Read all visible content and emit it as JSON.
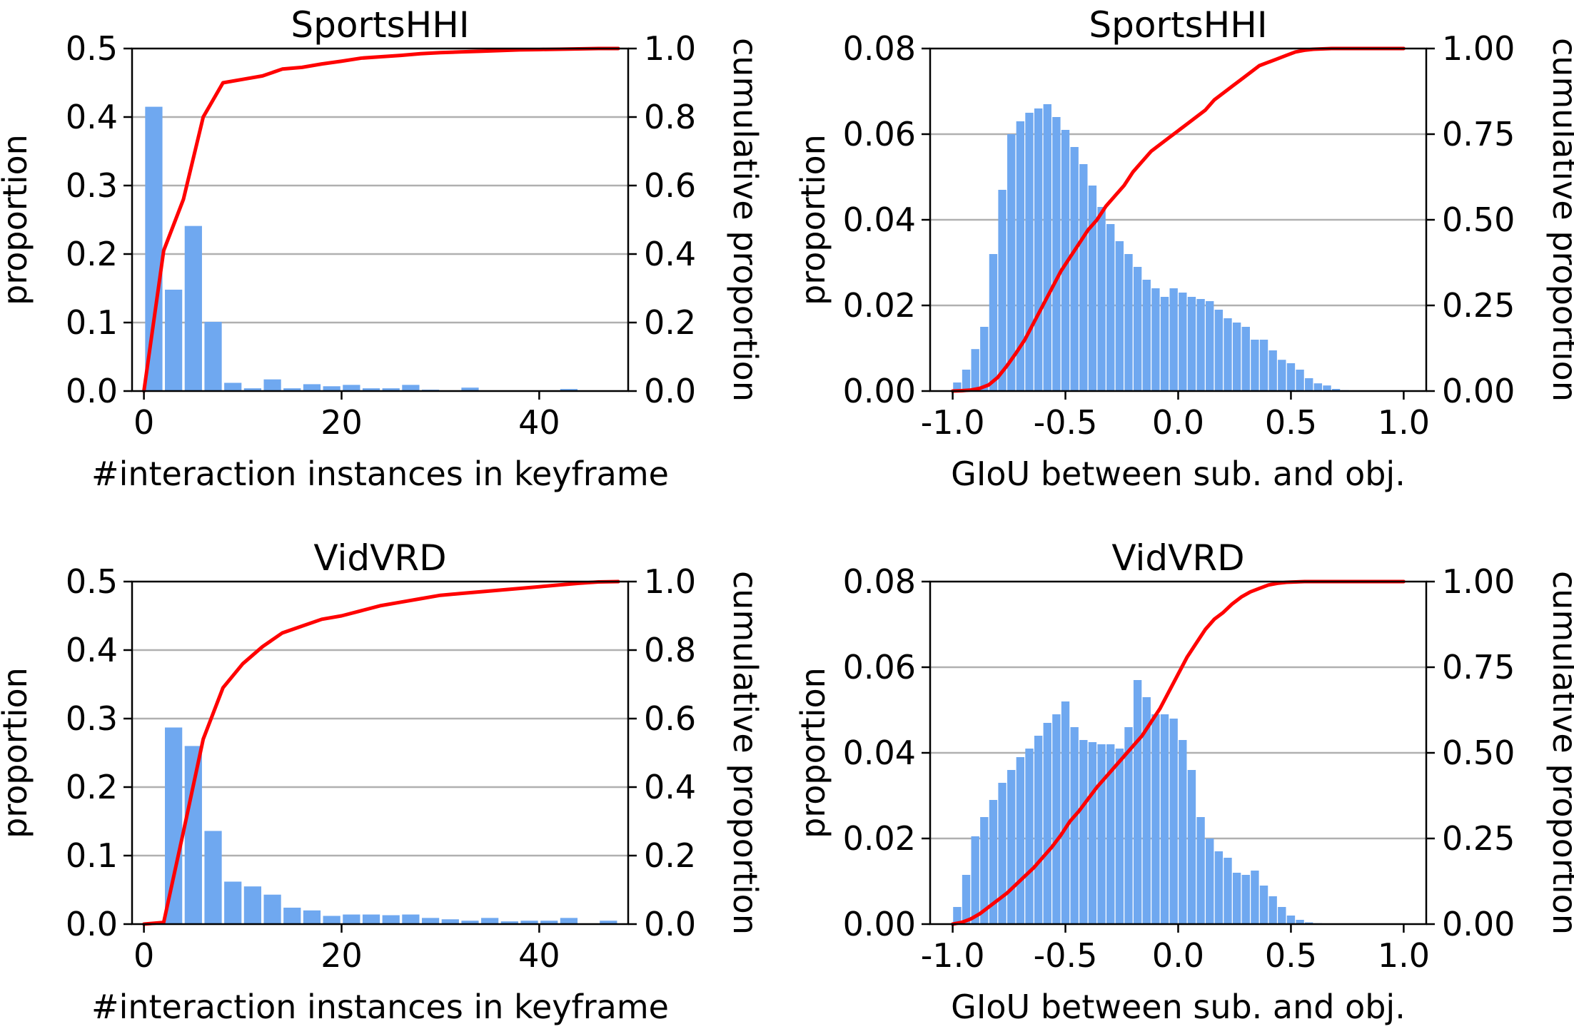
{
  "colors": {
    "bar": "#6fa8f0",
    "cdf": "#ff0000",
    "grid": "#b0b0b0",
    "axis": "#000000"
  },
  "chart_data": [
    {
      "type": "bar",
      "title": "SportsHHI",
      "xlabel": "#interaction instances in keyframe",
      "ylabel": "proportion",
      "y2label": "cumulative proportion",
      "xlim": [
        -1.2,
        49
      ],
      "ylim": [
        0,
        0.5
      ],
      "y2lim": [
        0,
        1.0
      ],
      "xticks": [
        0,
        20,
        40
      ],
      "xtick_labels": [
        "0",
        "20",
        "40"
      ],
      "yticks": [
        0,
        0.1,
        0.2,
        0.3,
        0.4,
        0.5
      ],
      "ytick_labels": [
        "0.0",
        "0.1",
        "0.2",
        "0.3",
        "0.4",
        "0.5"
      ],
      "y2ticks": [
        0,
        0.2,
        0.4,
        0.6,
        0.8,
        1.0
      ],
      "y2tick_labels": [
        "0.0",
        "0.2",
        "0.4",
        "0.6",
        "0.8",
        "1.0"
      ],
      "grid": true,
      "bar_width": 1.75,
      "bars": {
        "x": [
          1,
          3,
          5,
          7,
          9,
          11,
          13,
          15,
          17,
          19,
          21,
          23,
          25,
          27,
          29,
          31,
          33,
          35,
          37,
          39,
          41,
          43,
          45,
          47
        ],
        "values": [
          0.415,
          0.148,
          0.241,
          0.101,
          0.012,
          0.004,
          0.017,
          0.004,
          0.01,
          0.007,
          0.009,
          0.004,
          0.004,
          0.009,
          0.002,
          0.001,
          0.005,
          0.001,
          0.001,
          0.001,
          0.001,
          0.003,
          0.001,
          0.001
        ]
      },
      "cdf": {
        "x": [
          0,
          2,
          4,
          6,
          8,
          10,
          12,
          14,
          16,
          18,
          20,
          22,
          24,
          26,
          28,
          30,
          32,
          34,
          36,
          38,
          40,
          42,
          44,
          46,
          48
        ],
        "values": [
          0.0,
          0.41,
          0.56,
          0.8,
          0.9,
          0.91,
          0.92,
          0.94,
          0.945,
          0.955,
          0.963,
          0.972,
          0.976,
          0.98,
          0.985,
          0.988,
          0.99,
          0.992,
          0.994,
          0.996,
          0.997,
          0.998,
          0.999,
          1.0,
          1.0
        ]
      }
    },
    {
      "type": "bar",
      "title": "SportsHHI",
      "xlabel": "GIoU between sub. and obj.",
      "ylabel": "proportion",
      "y2label": "cumulative proportion",
      "xlim": [
        -1.1,
        1.1
      ],
      "ylim": [
        0,
        0.08
      ],
      "y2lim": [
        0,
        1.0
      ],
      "xticks": [
        -1.0,
        -0.5,
        0.0,
        0.5,
        1.0
      ],
      "xtick_labels": [
        "-1.0",
        "-0.5",
        "0.0",
        "0.5",
        "1.0"
      ],
      "yticks": [
        0,
        0.02,
        0.04,
        0.06,
        0.08
      ],
      "ytick_labels": [
        "0.00",
        "0.02",
        "0.04",
        "0.06",
        "0.08"
      ],
      "y2ticks": [
        0,
        0.25,
        0.5,
        0.75,
        1.0
      ],
      "y2tick_labels": [
        "0.00",
        "0.25",
        "0.50",
        "0.75",
        "1.00"
      ],
      "grid": true,
      "bar_width": 0.036,
      "bars": {
        "x": [
          -0.98,
          -0.94,
          -0.9,
          -0.86,
          -0.82,
          -0.78,
          -0.74,
          -0.7,
          -0.66,
          -0.62,
          -0.58,
          -0.54,
          -0.5,
          -0.46,
          -0.42,
          -0.38,
          -0.34,
          -0.3,
          -0.26,
          -0.22,
          -0.18,
          -0.14,
          -0.1,
          -0.06,
          -0.02,
          0.02,
          0.06,
          0.1,
          0.14,
          0.18,
          0.22,
          0.26,
          0.3,
          0.34,
          0.38,
          0.42,
          0.46,
          0.5,
          0.54,
          0.58,
          0.62,
          0.66,
          0.7,
          0.74,
          0.78,
          0.82,
          0.86,
          0.9,
          0.94,
          0.98
        ],
        "values": [
          0.002,
          0.005,
          0.0098,
          0.015,
          0.032,
          0.047,
          0.06,
          0.063,
          0.065,
          0.066,
          0.067,
          0.064,
          0.061,
          0.057,
          0.053,
          0.048,
          0.043,
          0.039,
          0.035,
          0.032,
          0.029,
          0.026,
          0.024,
          0.022,
          0.024,
          0.023,
          0.022,
          0.0215,
          0.021,
          0.019,
          0.017,
          0.016,
          0.015,
          0.012,
          0.012,
          0.0095,
          0.0073,
          0.0065,
          0.005,
          0.003,
          0.0018,
          0.0013,
          0.0005,
          0.0002,
          0.0001,
          0.0,
          0.0,
          0.0,
          0.0,
          0.0
        ]
      },
      "cdf": {
        "x": [
          -1.0,
          -0.96,
          -0.92,
          -0.88,
          -0.84,
          -0.8,
          -0.76,
          -0.72,
          -0.68,
          -0.64,
          -0.6,
          -0.56,
          -0.52,
          -0.48,
          -0.44,
          -0.4,
          -0.36,
          -0.32,
          -0.28,
          -0.24,
          -0.2,
          -0.16,
          -0.12,
          -0.08,
          -0.04,
          0.0,
          0.04,
          0.08,
          0.12,
          0.16,
          0.2,
          0.24,
          0.28,
          0.32,
          0.36,
          0.4,
          0.44,
          0.48,
          0.52,
          0.56,
          0.6,
          0.64,
          0.68,
          0.72,
          0.76,
          0.8,
          0.84,
          0.88,
          0.92,
          0.96,
          1.0
        ],
        "values": [
          0.0,
          0.001,
          0.003,
          0.008,
          0.018,
          0.04,
          0.073,
          0.11,
          0.15,
          0.2,
          0.25,
          0.3,
          0.35,
          0.39,
          0.43,
          0.47,
          0.5,
          0.54,
          0.57,
          0.6,
          0.64,
          0.67,
          0.7,
          0.72,
          0.74,
          0.76,
          0.78,
          0.8,
          0.82,
          0.85,
          0.87,
          0.89,
          0.91,
          0.93,
          0.95,
          0.96,
          0.97,
          0.98,
          0.99,
          0.995,
          0.998,
          0.999,
          1.0,
          1.0,
          1.0,
          1.0,
          1.0,
          1.0,
          1.0,
          1.0,
          1.0
        ]
      }
    },
    {
      "type": "bar",
      "title": "VidVRD",
      "xlabel": "#interaction instances in keyframe",
      "ylabel": "proportion",
      "y2label": "cumulative proportion",
      "xlim": [
        -1.2,
        49
      ],
      "ylim": [
        0,
        0.5
      ],
      "y2lim": [
        0,
        1.0
      ],
      "xticks": [
        0,
        20,
        40
      ],
      "xtick_labels": [
        "0",
        "20",
        "40"
      ],
      "yticks": [
        0,
        0.1,
        0.2,
        0.3,
        0.4,
        0.5
      ],
      "ytick_labels": [
        "0.0",
        "0.1",
        "0.2",
        "0.3",
        "0.4",
        "0.5"
      ],
      "y2ticks": [
        0,
        0.2,
        0.4,
        0.6,
        0.8,
        1.0
      ],
      "y2tick_labels": [
        "0.0",
        "0.2",
        "0.4",
        "0.6",
        "0.8",
        "1.0"
      ],
      "grid": true,
      "bar_width": 1.75,
      "bars": {
        "x": [
          1,
          3,
          5,
          7,
          9,
          11,
          13,
          15,
          17,
          19,
          21,
          23,
          25,
          27,
          29,
          31,
          33,
          35,
          37,
          39,
          41,
          43,
          45,
          47
        ],
        "values": [
          0.0,
          0.287,
          0.26,
          0.136,
          0.062,
          0.055,
          0.043,
          0.024,
          0.02,
          0.012,
          0.014,
          0.014,
          0.013,
          0.014,
          0.009,
          0.007,
          0.005,
          0.009,
          0.004,
          0.005,
          0.005,
          0.009,
          0.001,
          0.005
        ]
      },
      "cdf": {
        "x": [
          0,
          2,
          4,
          6,
          8,
          10,
          12,
          14,
          16,
          18,
          20,
          22,
          24,
          26,
          28,
          30,
          32,
          34,
          36,
          38,
          40,
          42,
          44,
          46,
          48
        ],
        "values": [
          0.0,
          0.005,
          0.27,
          0.54,
          0.69,
          0.76,
          0.81,
          0.85,
          0.87,
          0.89,
          0.9,
          0.915,
          0.93,
          0.94,
          0.95,
          0.96,
          0.965,
          0.97,
          0.975,
          0.98,
          0.985,
          0.99,
          0.995,
          0.999,
          1.0
        ]
      }
    },
    {
      "type": "bar",
      "title": "VidVRD",
      "xlabel": "GIoU between sub. and obj.",
      "ylabel": "proportion",
      "y2label": "cumulative proportion",
      "xlim": [
        -1.1,
        1.1
      ],
      "ylim": [
        0,
        0.08
      ],
      "y2lim": [
        0,
        1.0
      ],
      "xticks": [
        -1.0,
        -0.5,
        0.0,
        0.5,
        1.0
      ],
      "xtick_labels": [
        "-1.0",
        "-0.5",
        "0.0",
        "0.5",
        "1.0"
      ],
      "yticks": [
        0,
        0.02,
        0.04,
        0.06,
        0.08
      ],
      "ytick_labels": [
        "0.00",
        "0.02",
        "0.04",
        "0.06",
        "0.08"
      ],
      "y2ticks": [
        0,
        0.25,
        0.5,
        0.75,
        1.0
      ],
      "y2tick_labels": [
        "0.00",
        "0.25",
        "0.50",
        "0.75",
        "1.00"
      ],
      "grid": true,
      "bar_width": 0.036,
      "bars": {
        "x": [
          -0.98,
          -0.94,
          -0.9,
          -0.86,
          -0.82,
          -0.78,
          -0.74,
          -0.7,
          -0.66,
          -0.62,
          -0.58,
          -0.54,
          -0.5,
          -0.46,
          -0.42,
          -0.38,
          -0.34,
          -0.3,
          -0.26,
          -0.22,
          -0.18,
          -0.14,
          -0.1,
          -0.06,
          -0.02,
          0.02,
          0.06,
          0.1,
          0.14,
          0.18,
          0.22,
          0.26,
          0.3,
          0.34,
          0.38,
          0.42,
          0.46,
          0.5,
          0.54,
          0.58,
          0.62,
          0.66,
          0.7,
          0.74,
          0.78,
          0.82,
          0.86,
          0.9,
          0.94,
          0.98
        ],
        "values": [
          0.004,
          0.0115,
          0.0205,
          0.025,
          0.029,
          0.033,
          0.036,
          0.039,
          0.041,
          0.044,
          0.047,
          0.049,
          0.052,
          0.046,
          0.043,
          0.0425,
          0.042,
          0.042,
          0.041,
          0.046,
          0.057,
          0.053,
          0.049,
          0.049,
          0.048,
          0.043,
          0.036,
          0.025,
          0.02,
          0.017,
          0.0155,
          0.012,
          0.0115,
          0.0125,
          0.009,
          0.0065,
          0.004,
          0.002,
          0.001,
          0.0004,
          0.0002,
          0.0001,
          0.0,
          0.0,
          0.0,
          0.0,
          0.0,
          0.0,
          0.0,
          0.0
        ]
      },
      "cdf": {
        "x": [
          -1.0,
          -0.96,
          -0.92,
          -0.88,
          -0.84,
          -0.8,
          -0.76,
          -0.72,
          -0.68,
          -0.64,
          -0.6,
          -0.56,
          -0.52,
          -0.48,
          -0.44,
          -0.4,
          -0.36,
          -0.32,
          -0.28,
          -0.24,
          -0.2,
          -0.16,
          -0.12,
          -0.08,
          -0.04,
          0.0,
          0.04,
          0.08,
          0.12,
          0.16,
          0.2,
          0.24,
          0.28,
          0.32,
          0.36,
          0.4,
          0.44,
          0.48,
          0.52,
          0.56,
          0.6,
          0.64,
          0.68,
          0.72,
          0.76,
          0.8,
          0.84,
          0.88,
          0.92,
          0.96,
          1.0
        ],
        "values": [
          0.0,
          0.005,
          0.015,
          0.03,
          0.05,
          0.07,
          0.09,
          0.115,
          0.14,
          0.165,
          0.195,
          0.225,
          0.26,
          0.3,
          0.33,
          0.365,
          0.4,
          0.43,
          0.46,
          0.49,
          0.52,
          0.55,
          0.59,
          0.63,
          0.68,
          0.73,
          0.78,
          0.82,
          0.86,
          0.89,
          0.91,
          0.935,
          0.955,
          0.97,
          0.98,
          0.99,
          0.995,
          0.998,
          0.999,
          1.0,
          1.0,
          1.0,
          1.0,
          1.0,
          1.0,
          1.0,
          1.0,
          1.0,
          1.0,
          1.0,
          1.0
        ]
      }
    }
  ]
}
